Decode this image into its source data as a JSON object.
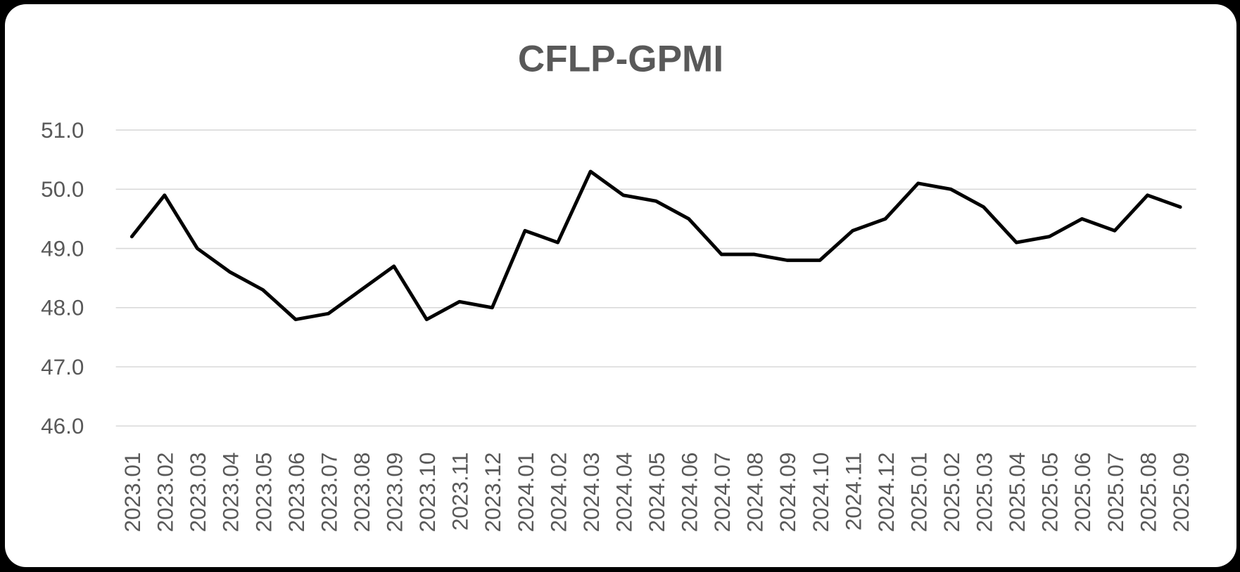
{
  "chart_data": {
    "type": "line",
    "title": "CFLP-GPMI",
    "categories": [
      "2023.01",
      "2023.02",
      "2023.03",
      "2023.04",
      "2023.05",
      "2023.06",
      "2023.07",
      "2023.08",
      "2023.09",
      "2023.10",
      "2023.11",
      "2023.12",
      "2024.01",
      "2024.02",
      "2024.03",
      "2024.04",
      "2024.05",
      "2024.06",
      "2024.07",
      "2024.08",
      "2024.09",
      "2024.10",
      "2024.11",
      "2024.12",
      "2025.01",
      "2025.02",
      "2025.03",
      "2025.04",
      "2025.05",
      "2025.06",
      "2025.07",
      "2025.08",
      "2025.09"
    ],
    "values": [
      49.2,
      49.9,
      49.0,
      48.6,
      48.3,
      47.8,
      47.9,
      48.3,
      48.7,
      47.8,
      48.1,
      48.0,
      49.3,
      49.1,
      50.3,
      49.9,
      49.8,
      49.5,
      48.9,
      48.9,
      48.8,
      48.8,
      49.3,
      49.5,
      50.1,
      50.0,
      49.7,
      49.1,
      49.2,
      49.5,
      49.3,
      49.9,
      49.7
    ],
    "series_name": "CFLP-GPMI",
    "xlabel": "",
    "ylabel": "",
    "ylim": [
      46.0,
      51.0
    ],
    "y_ticks": [
      "51.0",
      "50.0",
      "49.0",
      "48.0",
      "47.0",
      "46.0"
    ],
    "y_tick_values": [
      51.0,
      50.0,
      49.0,
      48.0,
      47.0,
      46.0
    ],
    "y_tick_interval": 1.0,
    "grid": "horizontal",
    "legend": "none",
    "markers": "none",
    "line_color": "#000000",
    "line_width": 5,
    "gridline_color": "#d9d9d9",
    "axis_label_color": "#595959",
    "title_color": "#595959",
    "plot_background": "#ffffff",
    "page_background": "#000000"
  }
}
